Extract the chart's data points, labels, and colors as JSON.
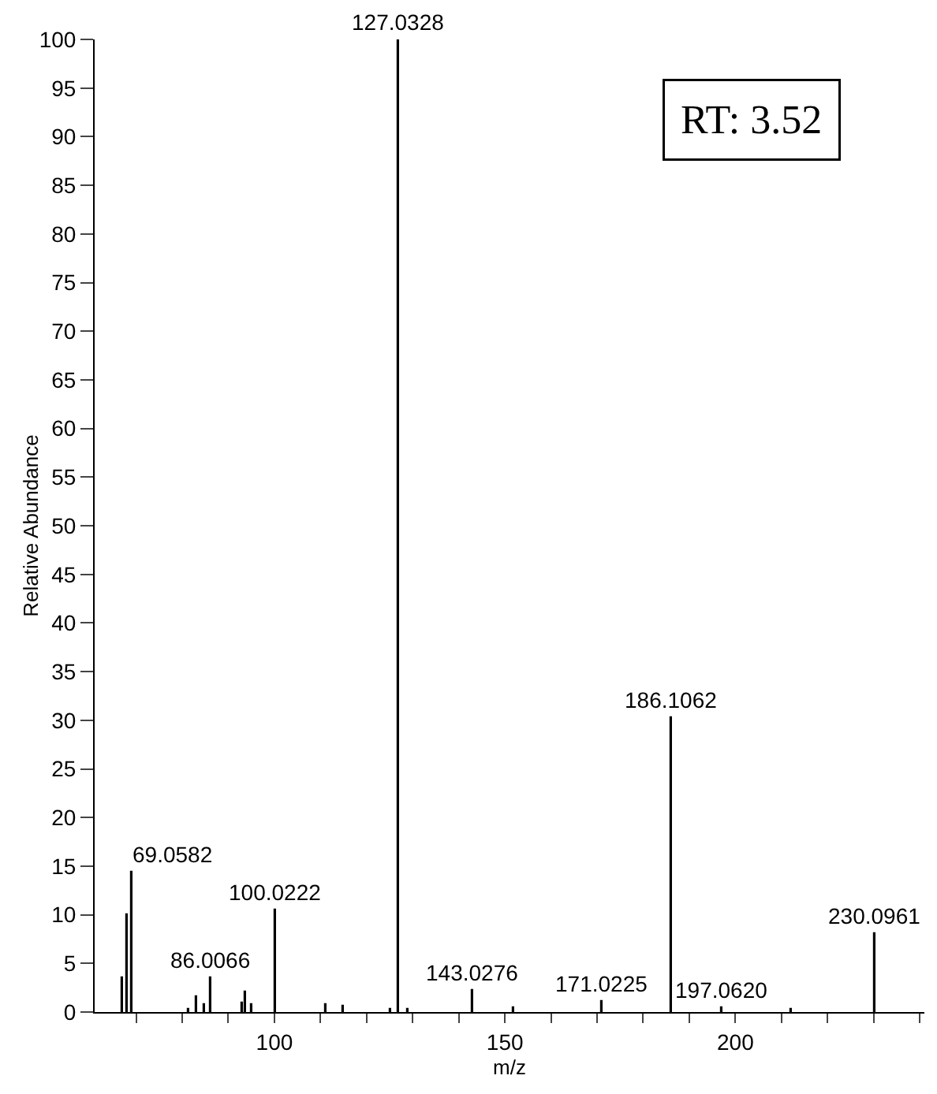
{
  "chart_data": {
    "type": "bar",
    "xlabel": "m/z",
    "ylabel": "Relative Abundance",
    "x": [
      66.9,
      67.9,
      69.0582,
      81.2,
      83.0,
      84.9,
      86.0066,
      92.9,
      93.8,
      95.0,
      100.0222,
      111.0,
      115.0,
      125.2,
      127.0328,
      128.8,
      143.0276,
      151.9,
      171.0225,
      186.1062,
      197.062,
      212.0,
      230.0961
    ],
    "series": [
      {
        "color": "#000000",
        "values": [
          3.5,
          10.1,
          14.5,
          0.4,
          1.7,
          0.8,
          3.5,
          1.0,
          2.1,
          0.8,
          10.5,
          0.8,
          0.6,
          0.3,
          100,
          0.3,
          2.2,
          0.5,
          1.1,
          30.3,
          0.5,
          0.3,
          8.1
        ]
      }
    ],
    "xlim": [
      61,
      241
    ],
    "xticks": [
      {
        "value": 70,
        "label": null
      },
      {
        "value": 80,
        "label": null
      },
      {
        "value": 90,
        "label": null
      },
      100,
      {
        "value": 110,
        "label": null
      },
      {
        "value": 120,
        "label": null
      },
      {
        "value": 130,
        "label": null
      },
      {
        "value": 140,
        "label": null
      },
      150,
      {
        "value": 160,
        "label": null
      },
      {
        "value": 170,
        "label": null
      },
      {
        "value": 180,
        "label": null
      },
      {
        "value": 190,
        "label": null
      },
      200,
      {
        "value": 210,
        "label": null
      },
      {
        "value": 220,
        "label": null
      },
      {
        "value": 230,
        "label": null
      },
      {
        "value": 240,
        "label": null
      }
    ],
    "ylim": [
      0,
      100
    ],
    "yticks": [
      0,
      5,
      10,
      15,
      20,
      25,
      30,
      35,
      40,
      45,
      50,
      55,
      60,
      65,
      70,
      75,
      80,
      85,
      90,
      95,
      100
    ],
    "grid": false,
    "annotations": [
      {
        "text": "127.0328",
        "x": 127.0328,
        "y": 100
      },
      {
        "text": "186.1062",
        "x": 186.1062,
        "y": 30.3
      },
      {
        "text": "69.0582",
        "x": 69.0582,
        "y": 14.5
      },
      {
        "text": "100.0222",
        "x": 100.0222,
        "y": 10.5
      },
      {
        "text": "86.0066",
        "x": 86.0066,
        "y": 3.5
      },
      {
        "text": "143.0276",
        "x": 143.0276,
        "y": 2.2
      },
      {
        "text": "171.0225",
        "x": 171.0225,
        "y": 1.1
      },
      {
        "text": "197.0620",
        "x": 197.062,
        "y": 0.5
      },
      {
        "text": "230.0961",
        "x": 230.0961,
        "y": 8.1
      },
      "RT: 3.52"
    ]
  }
}
